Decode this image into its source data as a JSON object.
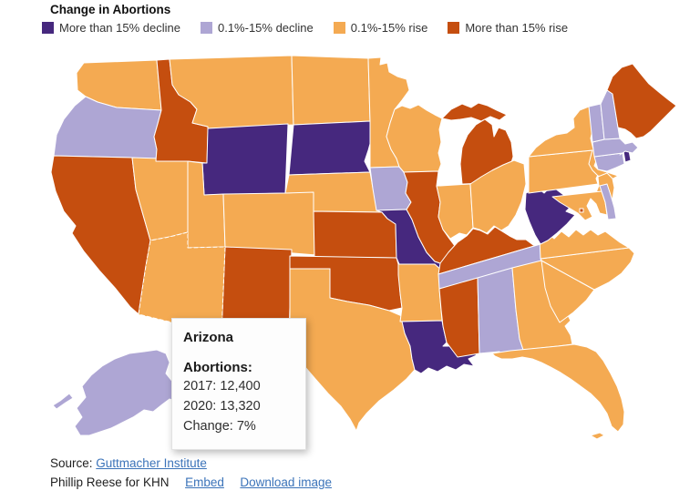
{
  "title": "Change in Abortions",
  "legend": {
    "items": [
      {
        "label": "More than 15% decline",
        "color": "#46287e",
        "key": "cat1"
      },
      {
        "label": "0.1%-15% decline",
        "color": "#aea6d4",
        "key": "cat2"
      },
      {
        "label": "0.1%-15% rise",
        "color": "#f4aa52",
        "key": "cat3"
      },
      {
        "label": "More than 15% rise",
        "color": "#c54e0f",
        "key": "cat4"
      }
    ]
  },
  "tooltip": {
    "state": "Arizona",
    "section_label": "Abortions:",
    "rows": [
      "2017: 12,400",
      "2020: 13,320",
      "Change: 7%"
    ]
  },
  "footer": {
    "source_label": "Source:",
    "source_link": "Guttmacher Institute",
    "credit": "Phillip Reese for KHN",
    "embed_link": "Embed",
    "download_link": "Download image",
    "link_color": "#3b73b9"
  },
  "map": {
    "background": "#ffffff",
    "border_color": "#ffffff",
    "highlight_state": "AZ",
    "highlight_stroke": "#1a1a1a",
    "category_colors": {
      "cat1": "#46287e",
      "cat2": "#aea6d4",
      "cat3": "#f4aa52",
      "cat4": "#c54e0f"
    },
    "states": [
      {
        "id": "WA",
        "name": "Washington",
        "cat": "cat3"
      },
      {
        "id": "OR",
        "name": "Oregon",
        "cat": "cat2"
      },
      {
        "id": "CA",
        "name": "California",
        "cat": "cat4"
      },
      {
        "id": "NV",
        "name": "Nevada",
        "cat": "cat3"
      },
      {
        "id": "ID",
        "name": "Idaho",
        "cat": "cat4"
      },
      {
        "id": "MT",
        "name": "Montana",
        "cat": "cat3"
      },
      {
        "id": "WY",
        "name": "Wyoming",
        "cat": "cat1"
      },
      {
        "id": "UT",
        "name": "Utah",
        "cat": "cat3"
      },
      {
        "id": "CO",
        "name": "Colorado",
        "cat": "cat3"
      },
      {
        "id": "AZ",
        "name": "Arizona",
        "cat": "cat3"
      },
      {
        "id": "NM",
        "name": "New Mexico",
        "cat": "cat4"
      },
      {
        "id": "ND",
        "name": "North Dakota",
        "cat": "cat3"
      },
      {
        "id": "SD",
        "name": "South Dakota",
        "cat": "cat1"
      },
      {
        "id": "NE",
        "name": "Nebraska",
        "cat": "cat3"
      },
      {
        "id": "KS",
        "name": "Kansas",
        "cat": "cat4"
      },
      {
        "id": "OK",
        "name": "Oklahoma",
        "cat": "cat4"
      },
      {
        "id": "TX",
        "name": "Texas",
        "cat": "cat3"
      },
      {
        "id": "MN",
        "name": "Minnesota",
        "cat": "cat3"
      },
      {
        "id": "IA",
        "name": "Iowa",
        "cat": "cat2"
      },
      {
        "id": "MO",
        "name": "Missouri",
        "cat": "cat1"
      },
      {
        "id": "AR",
        "name": "Arkansas",
        "cat": "cat3"
      },
      {
        "id": "LA",
        "name": "Louisiana",
        "cat": "cat1"
      },
      {
        "id": "WI",
        "name": "Wisconsin",
        "cat": "cat3"
      },
      {
        "id": "IL",
        "name": "Illinois",
        "cat": "cat4"
      },
      {
        "id": "MI",
        "name": "Michigan",
        "cat": "cat4"
      },
      {
        "id": "IN",
        "name": "Indiana",
        "cat": "cat3"
      },
      {
        "id": "OH",
        "name": "Ohio",
        "cat": "cat3"
      },
      {
        "id": "KY",
        "name": "Kentucky",
        "cat": "cat4"
      },
      {
        "id": "TN",
        "name": "Tennessee",
        "cat": "cat2"
      },
      {
        "id": "MS",
        "name": "Mississippi",
        "cat": "cat4"
      },
      {
        "id": "AL",
        "name": "Alabama",
        "cat": "cat2"
      },
      {
        "id": "GA",
        "name": "Georgia",
        "cat": "cat3"
      },
      {
        "id": "FL",
        "name": "Florida",
        "cat": "cat3"
      },
      {
        "id": "SC",
        "name": "South Carolina",
        "cat": "cat3"
      },
      {
        "id": "NC",
        "name": "North Carolina",
        "cat": "cat3"
      },
      {
        "id": "VA",
        "name": "Virginia",
        "cat": "cat3"
      },
      {
        "id": "WV",
        "name": "West Virginia",
        "cat": "cat1"
      },
      {
        "id": "MD",
        "name": "Maryland",
        "cat": "cat3"
      },
      {
        "id": "DE",
        "name": "Delaware",
        "cat": "cat2"
      },
      {
        "id": "DC",
        "name": "District of Columbia",
        "cat": "cat4"
      },
      {
        "id": "NJ",
        "name": "New Jersey",
        "cat": "cat3"
      },
      {
        "id": "PA",
        "name": "Pennsylvania",
        "cat": "cat3"
      },
      {
        "id": "NY",
        "name": "New York",
        "cat": "cat3"
      },
      {
        "id": "CT",
        "name": "Connecticut",
        "cat": "cat2"
      },
      {
        "id": "RI",
        "name": "Rhode Island",
        "cat": "cat1"
      },
      {
        "id": "MA",
        "name": "Massachusetts",
        "cat": "cat2"
      },
      {
        "id": "VT",
        "name": "Vermont",
        "cat": "cat2"
      },
      {
        "id": "NH",
        "name": "New Hampshire",
        "cat": "cat2"
      },
      {
        "id": "ME",
        "name": "Maine",
        "cat": "cat4"
      },
      {
        "id": "AK",
        "name": "Alaska",
        "cat": "cat2"
      },
      {
        "id": "HI",
        "name": "Hawaii",
        "cat": "cat2"
      }
    ]
  },
  "chart_data": {
    "type": "heatmap",
    "subtype": "choropleth-us-states",
    "title": "Change in Abortions",
    "legend_position": "top",
    "categories": [
      "More than 15% decline",
      "0.1%-15% decline",
      "0.1%-15% rise",
      "More than 15% rise"
    ],
    "category_colors": [
      "#46287e",
      "#aea6d4",
      "#f4aa52",
      "#c54e0f"
    ],
    "values": {
      "Washington": "0.1%-15% rise",
      "Oregon": "0.1%-15% decline",
      "California": "More than 15% rise",
      "Nevada": "0.1%-15% rise",
      "Idaho": "More than 15% rise",
      "Montana": "0.1%-15% rise",
      "Wyoming": "More than 15% decline",
      "Utah": "0.1%-15% rise",
      "Colorado": "0.1%-15% rise",
      "Arizona": "0.1%-15% rise",
      "New Mexico": "More than 15% rise",
      "North Dakota": "0.1%-15% rise",
      "South Dakota": "More than 15% decline",
      "Nebraska": "0.1%-15% rise",
      "Kansas": "More than 15% rise",
      "Oklahoma": "More than 15% rise",
      "Texas": "0.1%-15% rise",
      "Minnesota": "0.1%-15% rise",
      "Iowa": "0.1%-15% decline",
      "Missouri": "More than 15% decline",
      "Arkansas": "0.1%-15% rise",
      "Louisiana": "More than 15% decline",
      "Wisconsin": "0.1%-15% rise",
      "Illinois": "More than 15% rise",
      "Michigan": "More than 15% rise",
      "Indiana": "0.1%-15% rise",
      "Ohio": "0.1%-15% rise",
      "Kentucky": "More than 15% rise",
      "Tennessee": "0.1%-15% decline",
      "Mississippi": "More than 15% rise",
      "Alabama": "0.1%-15% decline",
      "Georgia": "0.1%-15% rise",
      "Florida": "0.1%-15% rise",
      "South Carolina": "0.1%-15% rise",
      "North Carolina": "0.1%-15% rise",
      "Virginia": "0.1%-15% rise",
      "West Virginia": "More than 15% decline",
      "Maryland": "0.1%-15% rise",
      "Delaware": "0.1%-15% decline",
      "District of Columbia": "More than 15% rise",
      "New Jersey": "0.1%-15% rise",
      "Pennsylvania": "0.1%-15% rise",
      "New York": "0.1%-15% rise",
      "Connecticut": "0.1%-15% decline",
      "Rhode Island": "More than 15% decline",
      "Massachusetts": "0.1%-15% decline",
      "Vermont": "0.1%-15% decline",
      "New Hampshire": "0.1%-15% decline",
      "Maine": "More than 15% rise",
      "Alaska": "0.1%-15% decline",
      "Hawaii": "0.1%-15% decline"
    },
    "highlighted_datapoint": {
      "state": "Arizona",
      "abortions_2017": 12400,
      "abortions_2020": 13320,
      "change": "7%"
    }
  }
}
